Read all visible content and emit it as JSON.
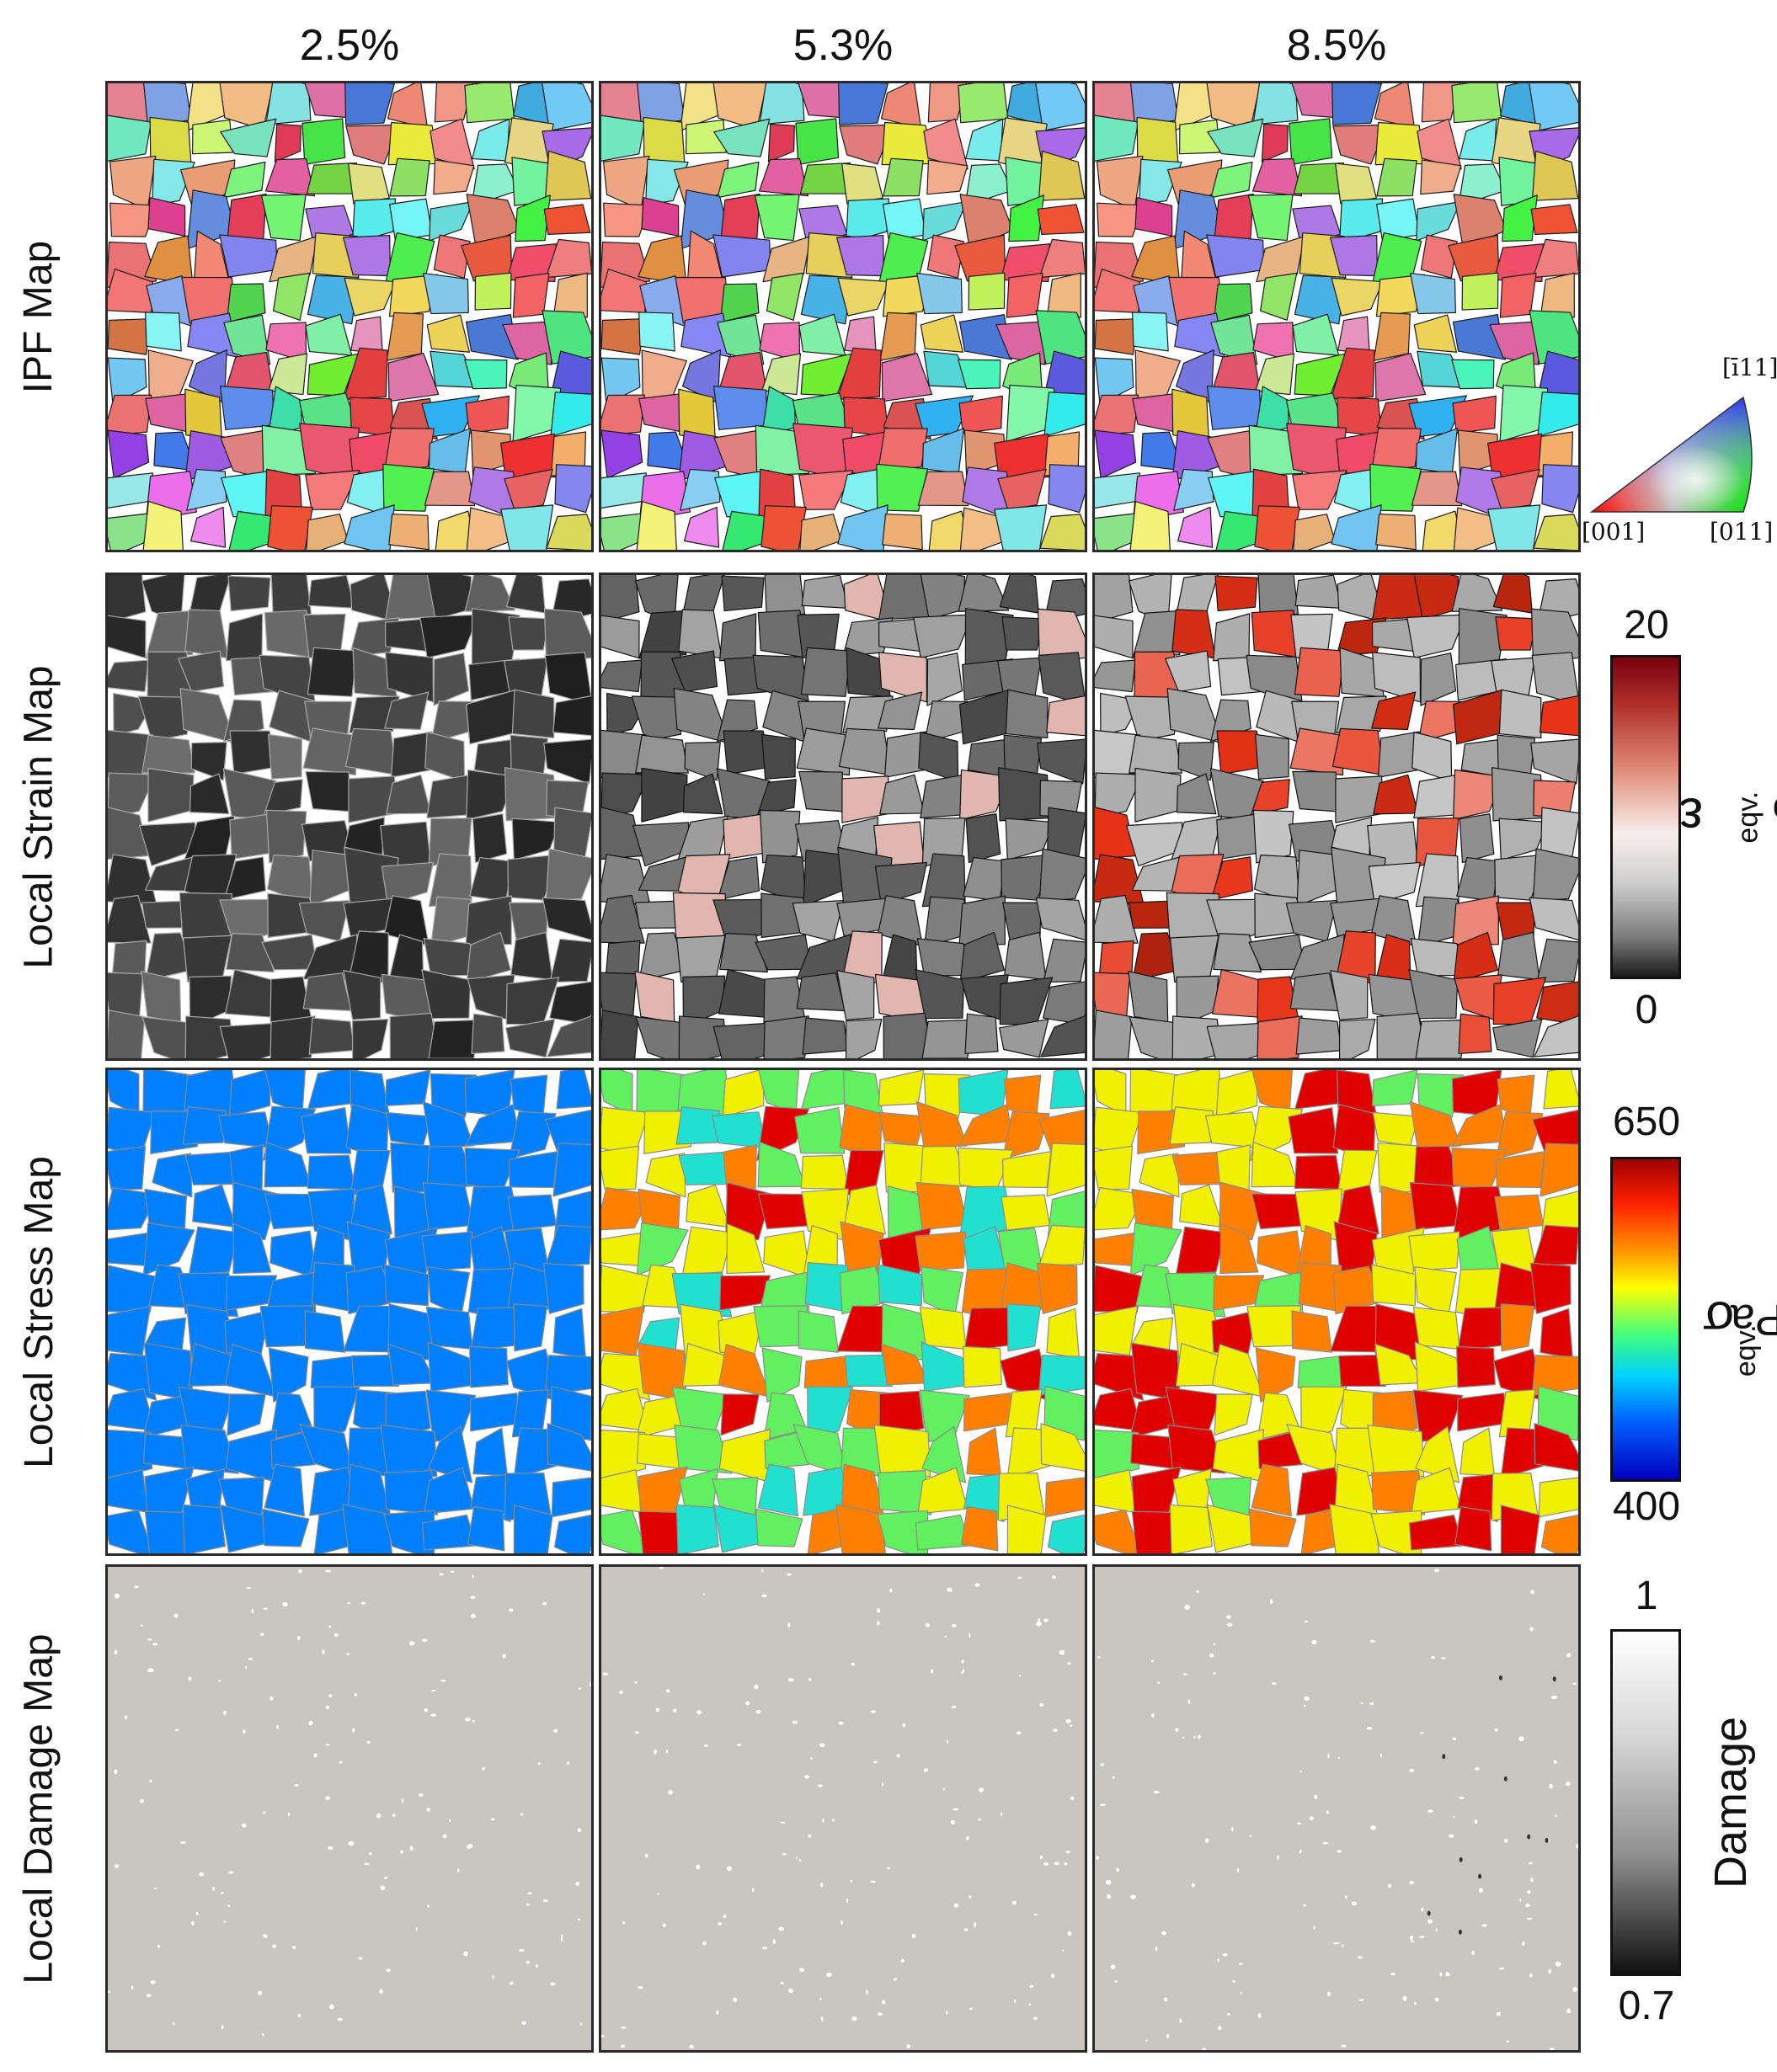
{
  "columns": [
    "2.5%",
    "5.3%",
    "8.5%"
  ],
  "rows": [
    "IPF Map",
    "Local Strain Map",
    "Local Stress Map",
    "Local Damage Map"
  ],
  "ipf_legend": {
    "top": "[ī11]",
    "left": "[001]",
    "right": "[011]"
  },
  "strain_scale": {
    "max": "20",
    "min": "0",
    "symbol": "ε",
    "subscript": "eqv.",
    "unit": "%"
  },
  "stress_scale": {
    "max": "650",
    "min": "400",
    "symbol": "σ",
    "subscript": "eqv.",
    "unit": ", MPa"
  },
  "damage_scale": {
    "max": "1",
    "min": "0.7",
    "label": "Damage"
  },
  "colors": {
    "damage_bg": "#c9c6c0",
    "stress_low": "#0019c8",
    "grain_boundary": "#111111"
  }
}
